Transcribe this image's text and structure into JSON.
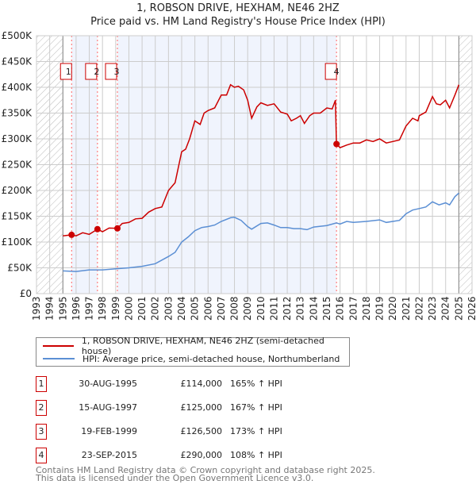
{
  "title_line1": "1, ROBSON DRIVE, HEXHAM, NE46 2HZ",
  "title_line2": "Price paid vs. HM Land Registry's House Price Index (HPI)",
  "legend": [
    {
      "label": "1, ROBSON DRIVE, HEXHAM, NE46 2HZ (semi-detached house)",
      "color": "#cc0000"
    },
    {
      "label": "HPI: Average price, semi-detached house, Northumberland",
      "color": "#5b8fd4"
    }
  ],
  "sales": [
    {
      "num": "1",
      "date": "30-AUG-1995",
      "price": "£114,000",
      "hpi": "165% ↑ HPI",
      "year": 1995.66,
      "value": 114000
    },
    {
      "num": "2",
      "date": "15-AUG-1997",
      "price": "£125,000",
      "hpi": "167% ↑ HPI",
      "year": 1997.62,
      "value": 125000
    },
    {
      "num": "3",
      "date": "19-FEB-1999",
      "price": "£126,500",
      "hpi": "173% ↑ HPI",
      "year": 1999.13,
      "value": 126500
    },
    {
      "num": "4",
      "date": "23-SEP-2015",
      "price": "£290,000",
      "hpi": "108% ↑ HPI",
      "year": 2015.73,
      "value": 290000
    }
  ],
  "footer_line1": "Contains HM Land Registry data © Crown copyright and database right 2025.",
  "footer_line2": "This data is licensed under the Open Government Licence v3.0.",
  "chart_data": {
    "type": "line",
    "title": "1, ROBSON DRIVE, HEXHAM, NE46 2HZ — Price paid vs. HM Land Registry's House Price Index (HPI)",
    "xlim": [
      1993,
      2026
    ],
    "ylim": [
      0,
      500000
    ],
    "y_ticks": [
      "£0",
      "£50K",
      "£100K",
      "£150K",
      "£200K",
      "£250K",
      "£300K",
      "£350K",
      "£400K",
      "£450K",
      "£500K"
    ],
    "x_ticks": [
      "1993",
      "1994",
      "1995",
      "1996",
      "1997",
      "1998",
      "1999",
      "2000",
      "2001",
      "2002",
      "2003",
      "2004",
      "2005",
      "2006",
      "2007",
      "2008",
      "2009",
      "2010",
      "2011",
      "2012",
      "2013",
      "2014",
      "2015",
      "2016",
      "2017",
      "2018",
      "2019",
      "2020",
      "2021",
      "2022",
      "2023",
      "2024",
      "2025",
      "2026"
    ],
    "grid": true,
    "series": [
      {
        "name": "1, ROBSON DRIVE, HEXHAM, NE46 2HZ (semi-detached house)",
        "color": "#cc0000",
        "x": [
          1995,
          1995.66,
          1996,
          1996.5,
          1997,
          1997.62,
          1998,
          1998.5,
          1999.13,
          1999.5,
          2000,
          2000.5,
          2001,
          2001.5,
          2002,
          2002.5,
          2003,
          2003.5,
          2004,
          2004.3,
          2004.6,
          2005,
          2005.4,
          2005.7,
          2006,
          2006.5,
          2007,
          2007.4,
          2007.7,
          2008,
          2008.3,
          2008.7,
          2009,
          2009.3,
          2009.7,
          2010,
          2010.5,
          2011,
          2011.5,
          2012,
          2012.3,
          2012.7,
          2013,
          2013.3,
          2013.7,
          2014,
          2014.5,
          2015,
          2015.4,
          2015.65,
          2015.73,
          2016,
          2016.5,
          2017,
          2017.5,
          2018,
          2018.5,
          2019,
          2019.5,
          2020,
          2020.5,
          2021,
          2021.5,
          2021.9,
          2022,
          2022.5,
          2023,
          2023.3,
          2023.6,
          2024,
          2024.3,
          2024.7,
          2025
        ],
        "y": [
          112000,
          114000,
          112000,
          118000,
          115000,
          125000,
          120000,
          127000,
          126500,
          136000,
          138000,
          145000,
          146000,
          158000,
          165000,
          168000,
          200000,
          215000,
          275000,
          280000,
          300000,
          335000,
          328000,
          350000,
          355000,
          360000,
          385000,
          385000,
          405000,
          400000,
          402000,
          395000,
          375000,
          340000,
          362000,
          370000,
          365000,
          368000,
          352000,
          348000,
          335000,
          340000,
          345000,
          330000,
          345000,
          350000,
          350000,
          360000,
          358000,
          375000,
          290000,
          283000,
          288000,
          292000,
          292000,
          298000,
          295000,
          300000,
          292000,
          295000,
          298000,
          325000,
          340000,
          335000,
          345000,
          352000,
          382000,
          368000,
          366000,
          375000,
          360000,
          385000,
          405000
        ]
      },
      {
        "name": "HPI: Average price, semi-detached house, Northumberland",
        "color": "#5b8fd4",
        "x": [
          1995,
          1996,
          1997,
          1998,
          1999,
          2000,
          2001,
          2002,
          2003,
          2003.5,
          2004,
          2004.5,
          2005,
          2005.5,
          2006,
          2006.5,
          2007,
          2007.7,
          2008,
          2008.5,
          2009,
          2009.3,
          2010,
          2010.5,
          2011,
          2011.5,
          2012,
          2012.5,
          2013,
          2013.5,
          2014,
          2015,
          2015.73,
          2016,
          2016.5,
          2017,
          2018,
          2019,
          2019.5,
          2020,
          2020.5,
          2021,
          2021.5,
          2022,
          2022.5,
          2023,
          2023.5,
          2024,
          2024.3,
          2024.7,
          2025
        ],
        "y": [
          44000,
          43000,
          46000,
          46000,
          48000,
          50000,
          53000,
          58000,
          72000,
          80000,
          100000,
          110000,
          122000,
          128000,
          130000,
          133000,
          140000,
          147000,
          148000,
          142000,
          130000,
          125000,
          136000,
          137000,
          133000,
          128000,
          128000,
          126000,
          126000,
          124000,
          129000,
          132000,
          137000,
          135000,
          140000,
          138000,
          140000,
          143000,
          138000,
          140000,
          142000,
          155000,
          162000,
          165000,
          168000,
          178000,
          172000,
          176000,
          172000,
          188000,
          195000
        ]
      }
    ]
  }
}
